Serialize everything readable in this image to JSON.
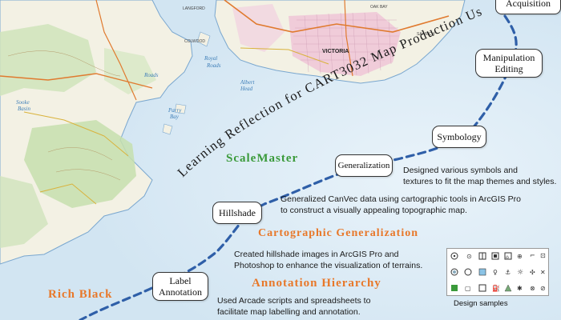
{
  "map_labels": {
    "victoria": "VICTORIA",
    "langford": "LANGFORD",
    "colwood": "COLWOOD",
    "roads": "Roads"
  },
  "title_arc": "Learning Reflection for CART3032 Map Production Us",
  "nodes": {
    "acquisition": "Acquisition",
    "manipulation_1": "Manipulation",
    "manipulation_2": "Editing",
    "symbology": "Symbology",
    "generalization": "Generalization",
    "hillshade": "Hillshade",
    "label_1": "Label",
    "label_2": "Annotation"
  },
  "headings": {
    "scalemaster": "ScaleMaster",
    "cartographic_generalization": "Cartographic Generalization",
    "annotation_hierarchy": "Annotation Hierarchy",
    "rich_black": "Rich Black"
  },
  "descriptions": {
    "symbology_1": "Designed various symbols and",
    "symbology_2": "textures to fit the map themes and styles.",
    "generalization_1": "Generalized CanVec data using cartographic tools in ArcGIS Pro",
    "generalization_2": "to construct a visually appealing topographic map.",
    "hillshade_1": "Created hillshade images in ArcGIS Pro and",
    "hillshade_2": "Photoshop to enhance the visualization of terrains.",
    "annotation_1": "Used Arcade scripts and spreadsheets to",
    "annotation_2": "facilitate map labelling and annotation."
  },
  "design_samples": {
    "caption": "Design samples"
  },
  "colors": {
    "water": "#dcebf5",
    "land": "#f3f1e4",
    "forest": "#c9e0b5",
    "urban": "#efc3d6",
    "road": "#e07a2f",
    "path": "#2f5fa8",
    "green_heading": "#3a9a3a",
    "orange_heading": "#e8782a"
  }
}
